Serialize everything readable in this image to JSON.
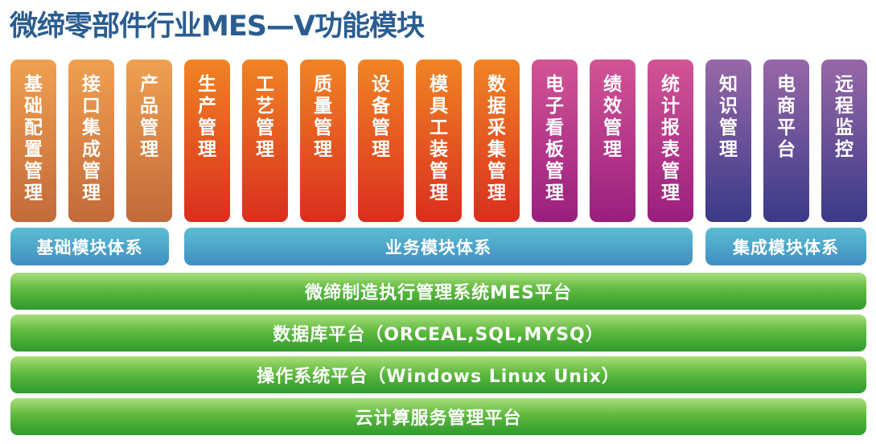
{
  "title": "微缔零部件行业MES—V功能模块",
  "colors": {
    "basic": [
      "#f0a050",
      "#c26a3a"
    ],
    "business": [
      "#f08424",
      "#da2e1e"
    ],
    "display": [
      "#d25496",
      "#9a1f7e"
    ],
    "integration": [
      "#9868a8",
      "#3a3a88"
    ]
  },
  "modules": [
    {
      "label": "基础配置管理",
      "group": "basic"
    },
    {
      "label": "接口集成管理",
      "group": "basic"
    },
    {
      "label": "产品管理",
      "group": "basic"
    },
    {
      "label": "生产管理",
      "group": "business"
    },
    {
      "label": "工艺管理",
      "group": "business"
    },
    {
      "label": "质量管理",
      "group": "business"
    },
    {
      "label": "设备管理",
      "group": "business"
    },
    {
      "label": "模具工装管理",
      "group": "business"
    },
    {
      "label": "数据采集管理",
      "group": "business"
    },
    {
      "label": "电子看板管理",
      "group": "display"
    },
    {
      "label": "绩效管理",
      "group": "display"
    },
    {
      "label": "统计报表管理",
      "group": "display"
    },
    {
      "label": "知识管理",
      "group": "integration"
    },
    {
      "label": "电商平台",
      "group": "integration"
    },
    {
      "label": "远程监控",
      "group": "integration"
    }
  ],
  "groups": {
    "basic": "基础模块体系",
    "business": "业务模块体系",
    "integration": "集成模块体系"
  },
  "platforms": [
    "微缔制造执行管理系统MES平台",
    "数据库平台（ORCEAL,SQL,MYSQ）",
    "操作系统平台（Windows Linux Unix）",
    "云计算服务管理平台"
  ]
}
